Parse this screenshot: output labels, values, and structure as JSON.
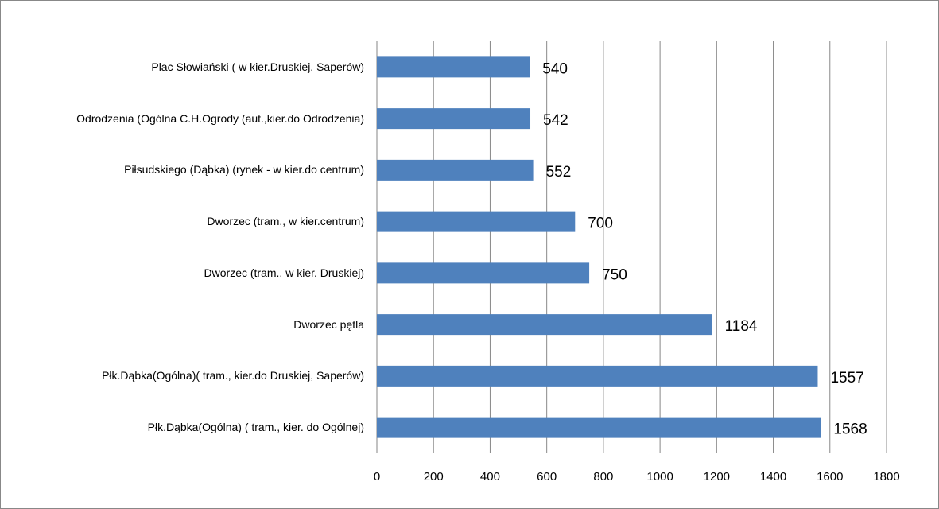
{
  "chart_data": {
    "type": "bar",
    "orientation": "horizontal",
    "categories": [
      "Plac Słowiański ( w kier.Druskiej, Saperów)",
      "Odrodzenia (Ogólna C.H.Ogrody (aut.,kier.do Odrodzenia)",
      "Piłsudskiego (Dąbka) (rynek - w kier.do centrum)",
      "Dworzec  (tram., w kier.centrum)",
      "Dworzec  (tram., w kier. Druskiej)",
      "Dworzec pętla",
      "Płk.Dąbka(Ogólna)( tram., kier.do Druskiej, Saperów)",
      "Płk.Dąbka(Ogólna) ( tram., kier. do Ogólnej)"
    ],
    "values": [
      540,
      542,
      552,
      700,
      750,
      1184,
      1557,
      1568
    ],
    "color": "#4f81bd",
    "xlim": [
      0,
      1800
    ],
    "xticks": [
      0,
      200,
      400,
      600,
      800,
      1000,
      1200,
      1400,
      1600,
      1800
    ],
    "grid": true
  }
}
